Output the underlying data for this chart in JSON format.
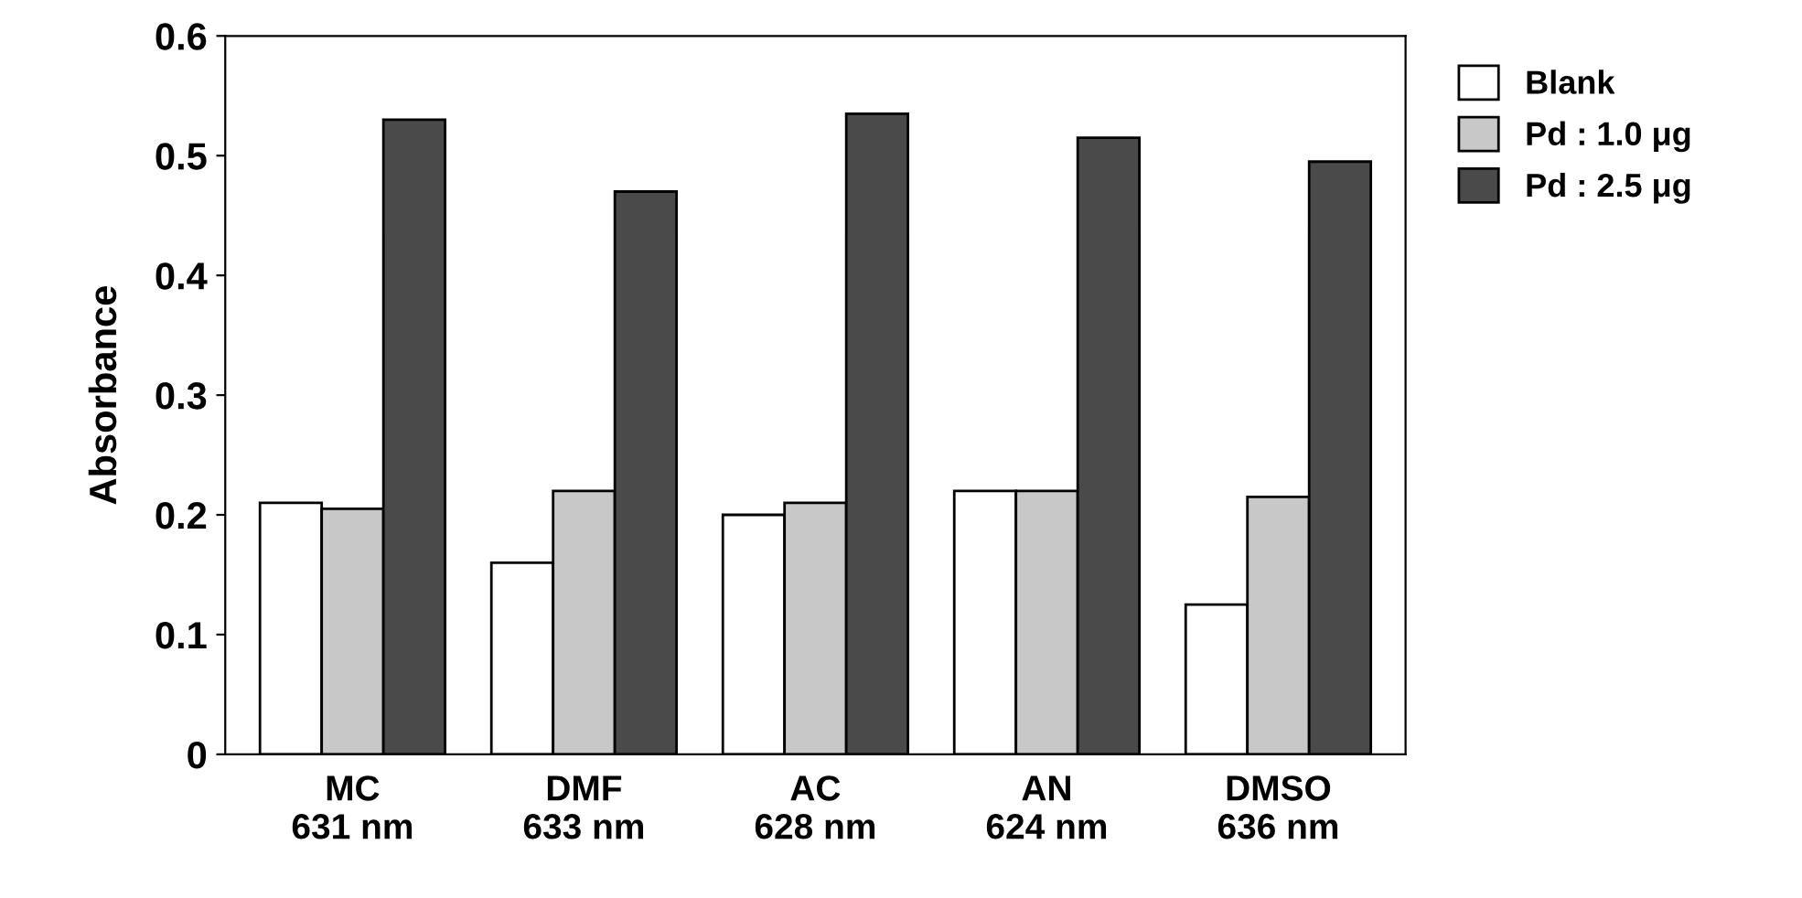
{
  "chart_data": {
    "type": "bar",
    "ylabel": "Absorbance",
    "categories": [
      "MC\n631 nm",
      "DMF\n633 nm",
      "AC\n628 nm",
      "AN\n624 nm",
      "DMSO\n636 nm"
    ],
    "series": [
      {
        "name": "Blank",
        "color": "#ffffff",
        "values": [
          0.21,
          0.16,
          0.2,
          0.22,
          0.125
        ]
      },
      {
        "name": "Pd : 1.0 μg",
        "color": "#c8c8c8",
        "values": [
          0.205,
          0.22,
          0.21,
          0.22,
          0.215
        ]
      },
      {
        "name": "Pd : 2.5 μg",
        "color": "#4a4a4a",
        "values": [
          0.53,
          0.47,
          0.535,
          0.515,
          0.495
        ]
      }
    ],
    "ylim": [
      0,
      0.6
    ],
    "yticks": [
      {
        "value": 0,
        "label": "0"
      },
      0.1,
      0.2,
      0.3,
      0.4,
      0.5,
      0.6
    ],
    "grid": false,
    "legend": "right"
  }
}
